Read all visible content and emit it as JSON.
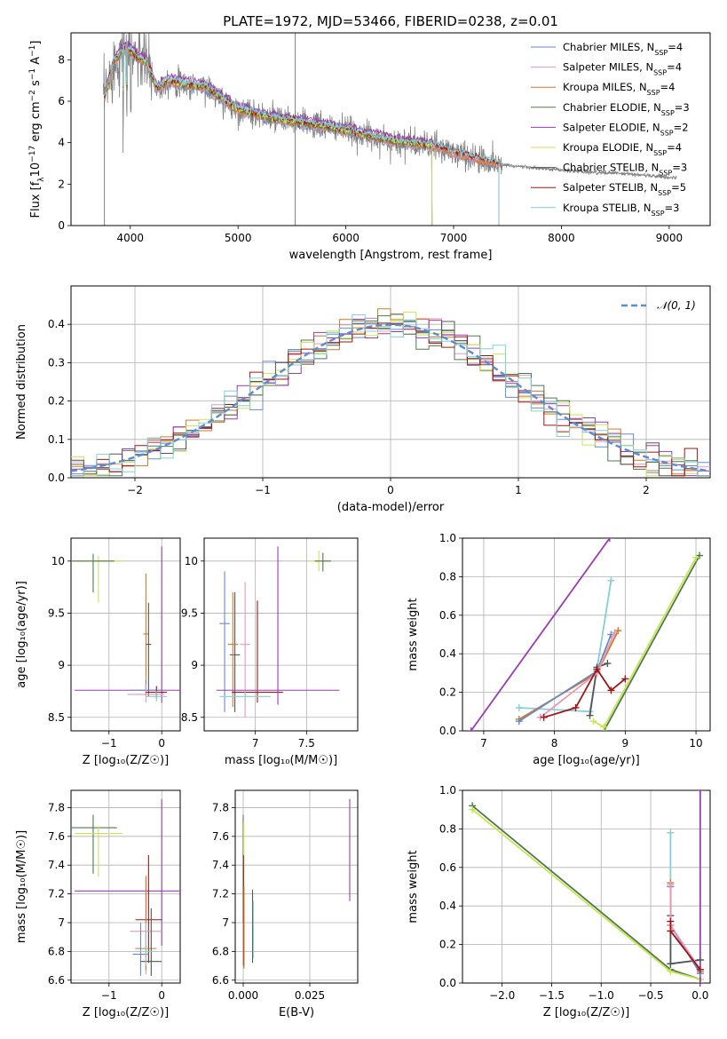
{
  "figure_title": "PLATE=1972, MJD=53466, FIBERID=0238, z=0.01",
  "colors": {
    "chabrier_miles": "#6a88c8",
    "salpeter_miles": "#e89ab5",
    "kroupa_miles": "#d07a28",
    "chabrier_elodie": "#4f7a4c",
    "salpeter_elodie": "#9a3db5",
    "kroupa_elodie": "#c8e650",
    "chabrier_stelib": "#555555",
    "salpeter_stelib": "#a01616",
    "kroupa_stelib": "#84cfd8",
    "data": "#808080",
    "gauss": "#5b8bd0"
  },
  "chart_data": [
    {
      "id": "spectrum",
      "type": "line",
      "title": "",
      "xlabel": "wavelength [Angstrom, rest frame]",
      "ylabel_parts": [
        "Flux [f",
        "λ",
        "10",
        "−17",
        " erg cm",
        "−2",
        " s",
        "−1",
        " A",
        "−1",
        "]"
      ],
      "xlim": [
        3450,
        9380
      ],
      "ylim": [
        0,
        9.3
      ],
      "xticks": [
        4000,
        5000,
        6000,
        7000,
        8000,
        9000
      ],
      "yticks": [
        0,
        2,
        4,
        6,
        8
      ],
      "grid": false,
      "legend_position": "top-right",
      "legend": [
        {
          "prefix": "Chabrier MILES, N",
          "sub": "SSP",
          "suffix": "=4",
          "color": "#6a88c8"
        },
        {
          "prefix": "Salpeter MILES, N",
          "sub": "SSP",
          "suffix": "=4",
          "color": "#e89ab5"
        },
        {
          "prefix": "Kroupa MILES, N",
          "sub": "SSP",
          "suffix": "=4",
          "color": "#d07a28"
        },
        {
          "prefix": "Chabrier ELODIE, N",
          "sub": "SSP",
          "suffix": "=3",
          "color": "#4f7a4c"
        },
        {
          "prefix": "Salpeter ELODIE, N",
          "sub": "SSP",
          "suffix": "=2",
          "color": "#9a3db5"
        },
        {
          "prefix": "Kroupa ELODIE, N",
          "sub": "SSP",
          "suffix": "=4",
          "color": "#c8e650"
        },
        {
          "prefix": "Chabrier STELIB, N",
          "sub": "SSP",
          "suffix": "=3",
          "color": "#555555"
        },
        {
          "prefix": "Salpeter STELIB, N",
          "sub": "SSP",
          "suffix": "=5",
          "color": "#a01616"
        },
        {
          "prefix": "Kroupa STELIB, N",
          "sub": "SSP",
          "suffix": "=3",
          "color": "#84cfd8"
        }
      ],
      "continuum": {
        "x": [
          3750,
          3850,
          3950,
          4050,
          4150,
          4250,
          4350,
          4500,
          4700,
          4850,
          5000,
          5300,
          5600,
          6000,
          6400,
          6800,
          7200,
          7450,
          7800,
          8200,
          8600,
          9070
        ],
        "y": [
          6.0,
          7.9,
          8.6,
          8.2,
          7.9,
          6.6,
          7.0,
          6.8,
          6.7,
          6.1,
          5.6,
          5.2,
          4.95,
          4.6,
          4.1,
          3.85,
          3.25,
          2.95,
          2.75,
          2.6,
          2.5,
          2.3
        ]
      },
      "models": {
        "miles": {
          "xmax": 7420
        },
        "elodie": {
          "xmax": 6800
        },
        "stelib": {
          "xmax": 7420
        }
      }
    },
    {
      "id": "residuals",
      "type": "line",
      "xlabel": "(data-model)/error",
      "ylabel": "Normed distribution",
      "xlim": [
        -2.5,
        2.5
      ],
      "ylim": [
        0,
        0.5
      ],
      "xticks": [
        -2,
        -1,
        0,
        1,
        2
      ],
      "xtick_labels": [
        "−2",
        "−1",
        "0",
        "1",
        "2"
      ],
      "yticks": [
        0.0,
        0.1,
        0.2,
        0.3,
        0.4
      ],
      "grid": true,
      "legend_position": "top-right",
      "legend_label": "𝒩(0, 1)",
      "gaussian": {
        "mu": 0,
        "sigma": 1
      },
      "bin_width": 0.1
    },
    {
      "id": "age_vs_Z",
      "type": "scatter",
      "xlabel": "Z [log₁₀(Z/Z☉)]",
      "ylabel": "age  [log₁₀(age/yr)]",
      "xlim": [
        -1.72,
        0.35
      ],
      "ylim": [
        8.37,
        10.22
      ],
      "xticks": [
        -1,
        0
      ],
      "xtick_labels": [
        "−1",
        "0"
      ],
      "yticks": [
        8.5,
        9.0,
        9.5,
        10.0
      ],
      "grid": true,
      "errorbars": [
        {
          "series": "kroupa_elodie",
          "x": -1.2,
          "xerr": 0.45,
          "y": 10.0,
          "yerr": [
            0.4,
            0.05
          ]
        },
        {
          "series": "chabrier_elodie",
          "x": -1.3,
          "xerr": 0.4,
          "y": 10.0,
          "yerr": [
            0.3,
            0.07
          ]
        },
        {
          "series": "kroupa_miles",
          "x": -0.3,
          "xerr": 0.05,
          "y": 9.3,
          "yerr": [
            0.6,
            0.58
          ]
        },
        {
          "series": "chabrier_stelib",
          "x": -0.25,
          "xerr": 0.05,
          "y": 9.2,
          "yerr": [
            0.5,
            0.4
          ]
        },
        {
          "series": "salpeter_elodie",
          "x": 0.0,
          "xerr": 1.65,
          "y": 8.76,
          "yerr": [
            0.12,
            1.38
          ]
        },
        {
          "series": "chabrier_miles",
          "x": -0.3,
          "xerr": 0.3,
          "y": 8.76,
          "yerr": [
            0.05,
            0.1
          ]
        },
        {
          "series": "salpeter_miles",
          "x": -0.3,
          "xerr": 0.35,
          "y": 8.72,
          "yerr": [
            0.08,
            0.1
          ]
        },
        {
          "series": "salpeter_stelib",
          "x": -0.1,
          "xerr": 0.2,
          "y": 8.74,
          "yerr": [
            0.06,
            0.06
          ]
        },
        {
          "series": "kroupa_stelib",
          "x": -0.1,
          "xerr": 0.2,
          "y": 8.7,
          "yerr": [
            0.05,
            0.05
          ]
        }
      ]
    },
    {
      "id": "age_vs_mass",
      "type": "scatter",
      "xlabel": "mass [log₁₀(M/M☉)]",
      "ylabel": "",
      "xlim": [
        6.5,
        8.0
      ],
      "ylim": [
        8.37,
        10.22
      ],
      "xticks": [
        7.0,
        7.5
      ],
      "yticks": [
        8.5,
        9.0,
        9.5,
        10.0
      ],
      "grid": true,
      "errorbars": [
        {
          "series": "kroupa_elodie",
          "x": 7.62,
          "xerr": 0.1,
          "y": 10.0,
          "yerr": [
            0.1,
            0.1
          ]
        },
        {
          "series": "chabrier_elodie",
          "x": 7.66,
          "xerr": 0.08,
          "y": 10.0,
          "yerr": [
            0.1,
            0.08
          ]
        },
        {
          "series": "chabrier_miles",
          "x": 6.7,
          "xerr": 0.05,
          "y": 9.4,
          "yerr": [
            0.85,
            0.5
          ]
        },
        {
          "series": "salpeter_miles",
          "x": 6.9,
          "xerr": 0.05,
          "y": 9.2,
          "yerr": [
            0.7,
            0.6
          ]
        },
        {
          "series": "chabrier_stelib",
          "x": 6.8,
          "xerr": 0.05,
          "y": 9.1,
          "yerr": [
            0.55,
            0.6
          ]
        },
        {
          "series": "kroupa_miles",
          "x": 6.78,
          "xerr": 0.05,
          "y": 9.2,
          "yerr": [
            0.6,
            0.5
          ]
        },
        {
          "series": "salpeter_stelib",
          "x": 7.02,
          "xerr": 0.25,
          "y": 8.74,
          "yerr": [
            0.1,
            0.88
          ]
        },
        {
          "series": "salpeter_elodie",
          "x": 7.22,
          "xerr": 0.6,
          "y": 8.76,
          "yerr": [
            0.14,
            1.38
          ]
        },
        {
          "series": "kroupa_stelib",
          "x": 6.9,
          "xerr": 0.25,
          "y": 8.7,
          "yerr": [
            0.05,
            0.05
          ]
        }
      ]
    },
    {
      "id": "weight_vs_age",
      "type": "line",
      "xlabel": "age  [log₁₀(age/yr)]",
      "ylabel": "mass weight",
      "xlim": [
        6.7,
        10.2
      ],
      "ylim": [
        0,
        1.0
      ],
      "xticks": [
        7,
        8,
        9,
        10
      ],
      "yticks": [
        0.0,
        0.2,
        0.4,
        0.6,
        0.8,
        1.0
      ],
      "grid": true,
      "series": [
        {
          "key": "salpeter_elodie",
          "x": [
            6.82,
            8.78
          ],
          "y": [
            0.0,
            1.0
          ]
        },
        {
          "key": "chabrier_elodie",
          "x": [
            8.7,
            10.05
          ],
          "y": [
            0.0,
            0.91
          ]
        },
        {
          "key": "kroupa_elodie",
          "x": [
            8.55,
            8.7,
            10.0
          ],
          "y": [
            0.05,
            0.02,
            0.9
          ]
        },
        {
          "key": "kroupa_stelib",
          "x": [
            7.5,
            8.5,
            8.6,
            8.8
          ],
          "y": [
            0.12,
            0.1,
            0.32,
            0.78
          ]
        },
        {
          "key": "chabrier_stelib",
          "x": [
            8.5,
            8.6,
            8.75
          ],
          "y": [
            0.08,
            0.33,
            0.35
          ]
        },
        {
          "key": "kroupa_miles",
          "x": [
            7.5,
            8.6,
            8.9
          ],
          "y": [
            0.06,
            0.3,
            0.52
          ]
        },
        {
          "key": "chabrier_miles",
          "x": [
            7.5,
            8.6,
            8.8
          ],
          "y": [
            0.05,
            0.31,
            0.5
          ]
        },
        {
          "key": "salpeter_miles",
          "x": [
            7.8,
            8.6,
            8.85
          ],
          "y": [
            0.07,
            0.3,
            0.51
          ]
        },
        {
          "key": "salpeter_stelib",
          "x": [
            7.85,
            8.3,
            8.6,
            8.8,
            9.0
          ],
          "y": [
            0.07,
            0.12,
            0.32,
            0.21,
            0.27
          ]
        }
      ]
    },
    {
      "id": "mass_vs_Z",
      "type": "scatter",
      "xlabel": "Z [log₁₀(Z/Z☉)]",
      "ylabel": "mass [log₁₀(M/M☉)]",
      "xlim": [
        -1.72,
        0.35
      ],
      "ylim": [
        6.58,
        7.92
      ],
      "xticks": [
        -1,
        0
      ],
      "xtick_labels": [
        "−1",
        "0"
      ],
      "yticks": [
        6.6,
        6.8,
        7.0,
        7.2,
        7.4,
        7.6,
        7.8
      ],
      "grid": true,
      "errorbars": [
        {
          "series": "chabrier_elodie",
          "x": -1.3,
          "xerr": 0.45,
          "y": 7.66,
          "yerr": [
            0.32,
            0.09
          ]
        },
        {
          "series": "kroupa_elodie",
          "x": -1.2,
          "xerr": 0.45,
          "y": 7.62,
          "yerr": [
            0.3,
            0.05
          ]
        },
        {
          "series": "salpeter_elodie",
          "x": 0.0,
          "xerr": 1.65,
          "y": 7.22,
          "yerr": [
            0.38,
            0.64
          ]
        },
        {
          "series": "salpeter_stelib",
          "x": -0.25,
          "xerr": 0.25,
          "y": 7.02,
          "yerr": [
            0.3,
            0.45
          ]
        },
        {
          "series": "salpeter_miles",
          "x": -0.3,
          "xerr": 0.3,
          "y": 6.94,
          "yerr": [
            0.3,
            0.39
          ]
        },
        {
          "series": "kroupa_miles",
          "x": -0.3,
          "xerr": 0.2,
          "y": 6.82,
          "yerr": [
            0.15,
            0.5
          ]
        },
        {
          "series": "chabrier_miles",
          "x": -0.4,
          "xerr": 0.15,
          "y": 6.78,
          "yerr": [
            0.15,
            0.22
          ]
        },
        {
          "series": "chabrier_stelib",
          "x": -0.2,
          "xerr": 0.2,
          "y": 6.73,
          "yerr": [
            0.1,
            0.37
          ]
        },
        {
          "series": "kroupa_stelib",
          "x": -0.3,
          "xerr": 0.2,
          "y": 6.8,
          "yerr": [
            0.1,
            0.2
          ]
        }
      ]
    },
    {
      "id": "mass_vs_ebv",
      "type": "scatter",
      "xlabel": "E(B-V)",
      "ylabel": "",
      "xlim": [
        -0.003,
        0.043
      ],
      "ylim": [
        6.58,
        7.92
      ],
      "xticks": [
        0.0,
        0.025
      ],
      "xtick_labels": [
        "0.000",
        "0.025"
      ],
      "yticks": [
        6.6,
        6.8,
        7.0,
        7.2,
        7.4,
        7.6,
        7.8
      ],
      "grid": true,
      "errorbars": [
        {
          "series": "chabrier_elodie",
          "x": 0.0,
          "xerr": 0,
          "y": 7.4,
          "yerr": [
            0.4,
            0.35
          ]
        },
        {
          "series": "kroupa_elodie",
          "x": 0.0002,
          "xerr": 0,
          "y": 7.35,
          "yerr": [
            0.45,
            0.35
          ]
        },
        {
          "series": "salpeter_stelib",
          "x": 0.0001,
          "xerr": 0,
          "y": 7.0,
          "yerr": [
            0.3,
            0.47
          ]
        },
        {
          "series": "kroupa_miles",
          "x": 0.0003,
          "xerr": 0,
          "y": 6.9,
          "yerr": [
            0.22,
            0.35
          ]
        },
        {
          "series": "chabrier_stelib",
          "x": 0.0035,
          "xerr": 0,
          "y": 6.97,
          "yerr": [
            0.25,
            0.26
          ]
        },
        {
          "series": "kroupa_stelib",
          "x": 0.0038,
          "xerr": 0,
          "y": 6.95,
          "yerr": [
            0.2,
            0.2
          ]
        },
        {
          "series": "salpeter_elodie",
          "x": 0.04,
          "xerr": 0,
          "y": 7.5,
          "yerr": [
            0.35,
            0.36
          ]
        }
      ]
    },
    {
      "id": "weight_vs_Z",
      "type": "line",
      "xlabel": "Z [log₁₀(Z/Z☉)]",
      "ylabel": "mass weight",
      "xlim": [
        -2.4,
        0.1
      ],
      "ylim": [
        0,
        1.0
      ],
      "xticks": [
        -2.0,
        -1.5,
        -1.0,
        -0.5,
        0.0
      ],
      "xtick_labels": [
        "−2.0",
        "−1.5",
        "−1.0",
        "−0.5",
        "0.0"
      ],
      "yticks": [
        0.0,
        0.2,
        0.4,
        0.6,
        0.8,
        1.0
      ],
      "grid": true,
      "series": [
        {
          "key": "chabrier_elodie",
          "x": [
            -2.3,
            -0.3,
            0.0
          ],
          "y": [
            0.92,
            0.07,
            0.02
          ]
        },
        {
          "key": "kroupa_elodie",
          "x": [
            -2.3,
            -0.3,
            0.0
          ],
          "y": [
            0.9,
            0.06,
            0.02
          ]
        },
        {
          "key": "salpeter_elodie",
          "x": [
            0.0,
            0.0
          ],
          "y": [
            0.0,
            1.0
          ]
        },
        {
          "key": "kroupa_stelib",
          "x": [
            -0.3,
            -0.3,
            0.0
          ],
          "y": [
            0.78,
            0.1,
            0.12
          ]
        },
        {
          "key": "chabrier_stelib",
          "x": [
            -0.3,
            -0.3,
            0.0
          ],
          "y": [
            0.35,
            0.1,
            0.12
          ]
        },
        {
          "key": "kroupa_miles",
          "x": [
            -0.3,
            -0.3,
            0.0
          ],
          "y": [
            0.52,
            0.3,
            0.06
          ]
        },
        {
          "key": "chabrier_miles",
          "x": [
            -0.3,
            -0.3,
            0.0
          ],
          "y": [
            0.5,
            0.3,
            0.05
          ]
        },
        {
          "key": "salpeter_miles",
          "x": [
            -0.3,
            -0.3,
            0.0
          ],
          "y": [
            0.51,
            0.3,
            0.07
          ]
        },
        {
          "key": "salpeter_stelib",
          "x": [
            -0.3,
            -0.3,
            0.0
          ],
          "y": [
            0.32,
            0.27,
            0.07
          ]
        }
      ]
    }
  ]
}
